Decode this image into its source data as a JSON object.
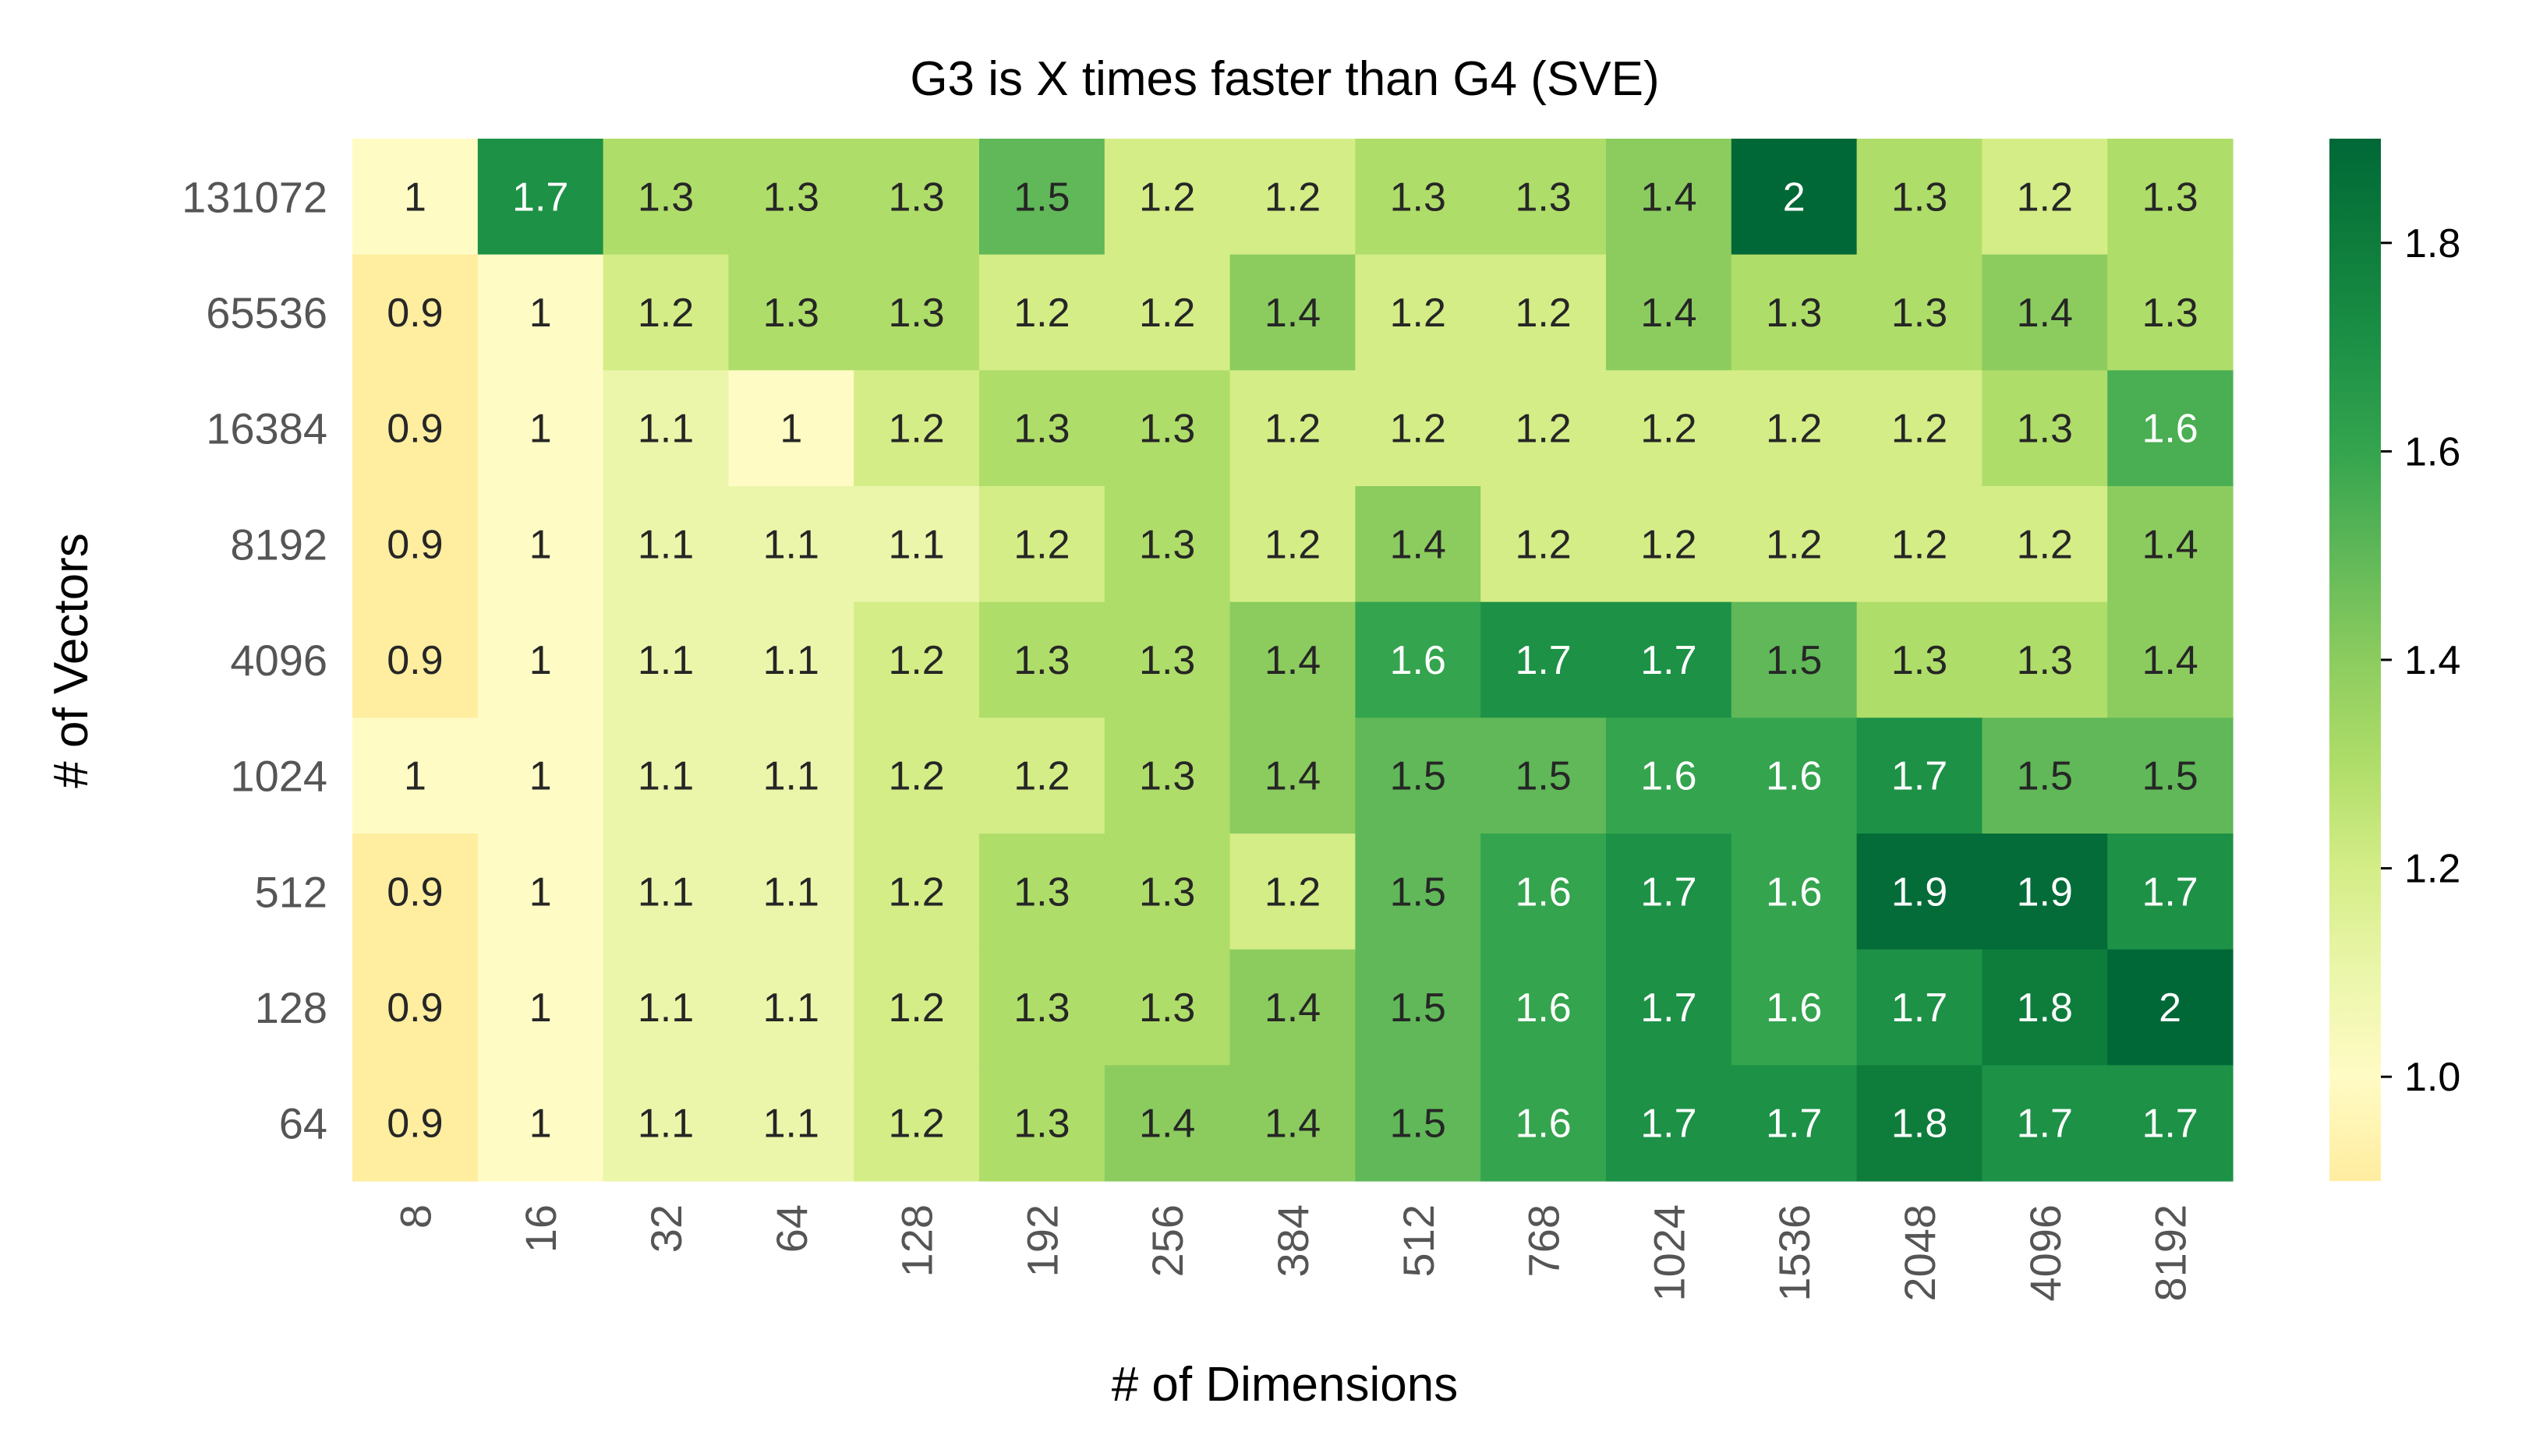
{
  "chart_data": {
    "type": "heatmap",
    "title": "G3 is X times faster than G4 (SVE)",
    "xlabel": "# of Dimensions",
    "ylabel": "# of Vectors",
    "x_categories": [
      "8",
      "16",
      "32",
      "64",
      "128",
      "192",
      "256",
      "384",
      "512",
      "768",
      "1024",
      "1536",
      "2048",
      "4096",
      "8192"
    ],
    "y_categories": [
      "131072",
      "65536",
      "16384",
      "8192",
      "4096",
      "1024",
      "512",
      "128",
      "64"
    ],
    "values": [
      [
        1.0,
        1.7,
        1.3,
        1.3,
        1.3,
        1.5,
        1.2,
        1.2,
        1.3,
        1.3,
        1.4,
        2.0,
        1.3,
        1.2,
        1.3
      ],
      [
        0.9,
        1.0,
        1.2,
        1.3,
        1.3,
        1.2,
        1.2,
        1.4,
        1.2,
        1.2,
        1.4,
        1.3,
        1.3,
        1.4,
        1.3
      ],
      [
        0.9,
        1.0,
        1.1,
        1.0,
        1.2,
        1.3,
        1.3,
        1.2,
        1.2,
        1.2,
        1.2,
        1.2,
        1.2,
        1.3,
        1.6
      ],
      [
        0.9,
        1.0,
        1.1,
        1.1,
        1.1,
        1.2,
        1.3,
        1.2,
        1.4,
        1.2,
        1.2,
        1.2,
        1.2,
        1.2,
        1.4
      ],
      [
        0.9,
        1.0,
        1.1,
        1.1,
        1.2,
        1.3,
        1.3,
        1.4,
        1.6,
        1.7,
        1.7,
        1.5,
        1.3,
        1.3,
        1.4
      ],
      [
        1.0,
        1.0,
        1.1,
        1.1,
        1.2,
        1.2,
        1.3,
        1.4,
        1.5,
        1.5,
        1.6,
        1.6,
        1.7,
        1.5,
        1.5
      ],
      [
        0.9,
        1.0,
        1.1,
        1.1,
        1.2,
        1.3,
        1.3,
        1.2,
        1.5,
        1.6,
        1.7,
        1.6,
        1.9,
        1.9,
        1.7
      ],
      [
        0.9,
        1.0,
        1.1,
        1.1,
        1.2,
        1.3,
        1.3,
        1.4,
        1.5,
        1.6,
        1.7,
        1.6,
        1.7,
        1.8,
        2.0
      ],
      [
        0.9,
        1.0,
        1.1,
        1.1,
        1.2,
        1.3,
        1.4,
        1.4,
        1.5,
        1.6,
        1.7,
        1.7,
        1.8,
        1.7,
        1.7
      ]
    ],
    "cell_shade": [
      [
        1.0,
        1.7,
        1.3,
        1.3,
        1.3,
        1.5,
        1.2,
        1.2,
        1.3,
        1.3,
        1.4,
        1.95,
        1.3,
        1.2,
        1.3
      ],
      [
        0.9,
        1.0,
        1.2,
        1.3,
        1.3,
        1.2,
        1.2,
        1.4,
        1.2,
        1.2,
        1.4,
        1.3,
        1.3,
        1.4,
        1.3
      ],
      [
        0.9,
        1.0,
        1.1,
        1.0,
        1.2,
        1.3,
        1.3,
        1.2,
        1.2,
        1.2,
        1.2,
        1.2,
        1.2,
        1.3,
        1.55
      ],
      [
        0.9,
        1.0,
        1.1,
        1.1,
        1.1,
        1.2,
        1.3,
        1.2,
        1.4,
        1.2,
        1.2,
        1.2,
        1.2,
        1.2,
        1.4
      ],
      [
        0.9,
        1.0,
        1.1,
        1.1,
        1.2,
        1.3,
        1.3,
        1.4,
        1.6,
        1.7,
        1.7,
        1.5,
        1.3,
        1.3,
        1.4
      ],
      [
        1.0,
        1.0,
        1.1,
        1.1,
        1.2,
        1.2,
        1.3,
        1.4,
        1.5,
        1.5,
        1.6,
        1.6,
        1.7,
        1.5,
        1.5
      ],
      [
        0.9,
        1.0,
        1.1,
        1.1,
        1.2,
        1.3,
        1.3,
        1.2,
        1.5,
        1.6,
        1.7,
        1.6,
        1.88,
        1.88,
        1.7
      ],
      [
        0.9,
        1.0,
        1.1,
        1.1,
        1.2,
        1.3,
        1.3,
        1.4,
        1.5,
        1.6,
        1.7,
        1.6,
        1.7,
        1.8,
        1.95
      ],
      [
        0.9,
        1.0,
        1.1,
        1.1,
        1.2,
        1.3,
        1.4,
        1.4,
        1.5,
        1.6,
        1.7,
        1.7,
        1.8,
        1.7,
        1.7
      ]
    ],
    "colormap": "YlGn",
    "colorbar": {
      "min": 0.9,
      "max": 1.9,
      "ticks": [
        1.0,
        1.2,
        1.4,
        1.6,
        1.8
      ],
      "tick_labels": [
        "1.0",
        "1.2",
        "1.4",
        "1.6",
        "1.8"
      ]
    },
    "colors": {
      "low": "#ffeda0",
      "high": "#006837",
      "text_dark": "#262626",
      "text_light": "#ffffff"
    },
    "x_tick_rotation": "vertical",
    "grid": false
  }
}
